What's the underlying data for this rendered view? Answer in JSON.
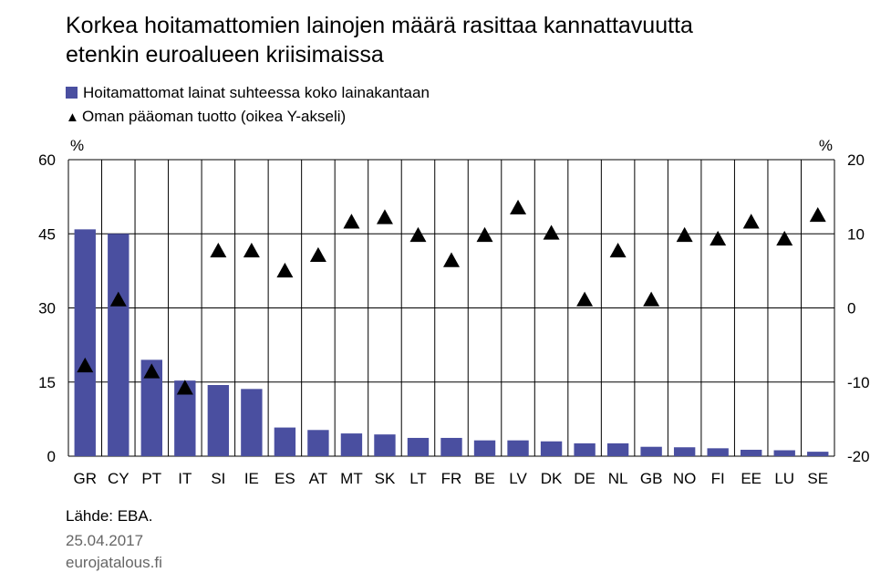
{
  "title_line1": "Korkea hoitamattomien lainojen määrä rasittaa kannattavuutta",
  "title_line2": "etenkin euroalueen kriisimaissa",
  "source": "Lähde: EBA.",
  "date": "25.04.2017",
  "site": "eurojatalous.fi",
  "colors": {
    "bar": "#4A4FA0",
    "marker": "#000000",
    "grid": "#000000"
  },
  "chart_data": {
    "type": "bar",
    "categories": [
      "GR",
      "CY",
      "PT",
      "IT",
      "SI",
      "IE",
      "ES",
      "AT",
      "MT",
      "SK",
      "LT",
      "FR",
      "BE",
      "LV",
      "DK",
      "DE",
      "NL",
      "GB",
      "NO",
      "FI",
      "EE",
      "LU",
      "SE"
    ],
    "series": [
      {
        "name": "Hoitamattomat lainat suhteessa koko lainakantaan",
        "type": "bar",
        "axis": "left",
        "values": [
          45.9,
          45.0,
          19.5,
          15.3,
          14.4,
          13.6,
          5.8,
          5.3,
          4.6,
          4.4,
          3.7,
          3.7,
          3.2,
          3.2,
          3.0,
          2.6,
          2.6,
          1.9,
          1.8,
          1.6,
          1.3,
          1.2,
          0.9
        ]
      },
      {
        "name": "Oman pääoman tuotto (oikea Y-akseli)",
        "type": "scatter",
        "marker": "triangle",
        "axis": "right",
        "values": [
          -7.8,
          1.1,
          -8.6,
          -10.8,
          7.7,
          7.7,
          5.0,
          7.1,
          11.6,
          12.2,
          9.8,
          6.4,
          9.8,
          13.5,
          10.1,
          1.1,
          7.7,
          1.1,
          9.8,
          9.3,
          11.6,
          9.3,
          12.5
        ]
      }
    ],
    "left_axis": {
      "unit": "%",
      "ticks": [
        "60",
        "45",
        "30",
        "15",
        "0"
      ],
      "range": [
        0,
        60
      ]
    },
    "right_axis": {
      "unit": "%",
      "ticks": [
        "20",
        "10",
        "0",
        "-10",
        "-20"
      ],
      "range": [
        -20,
        20
      ]
    },
    "grid": true
  }
}
